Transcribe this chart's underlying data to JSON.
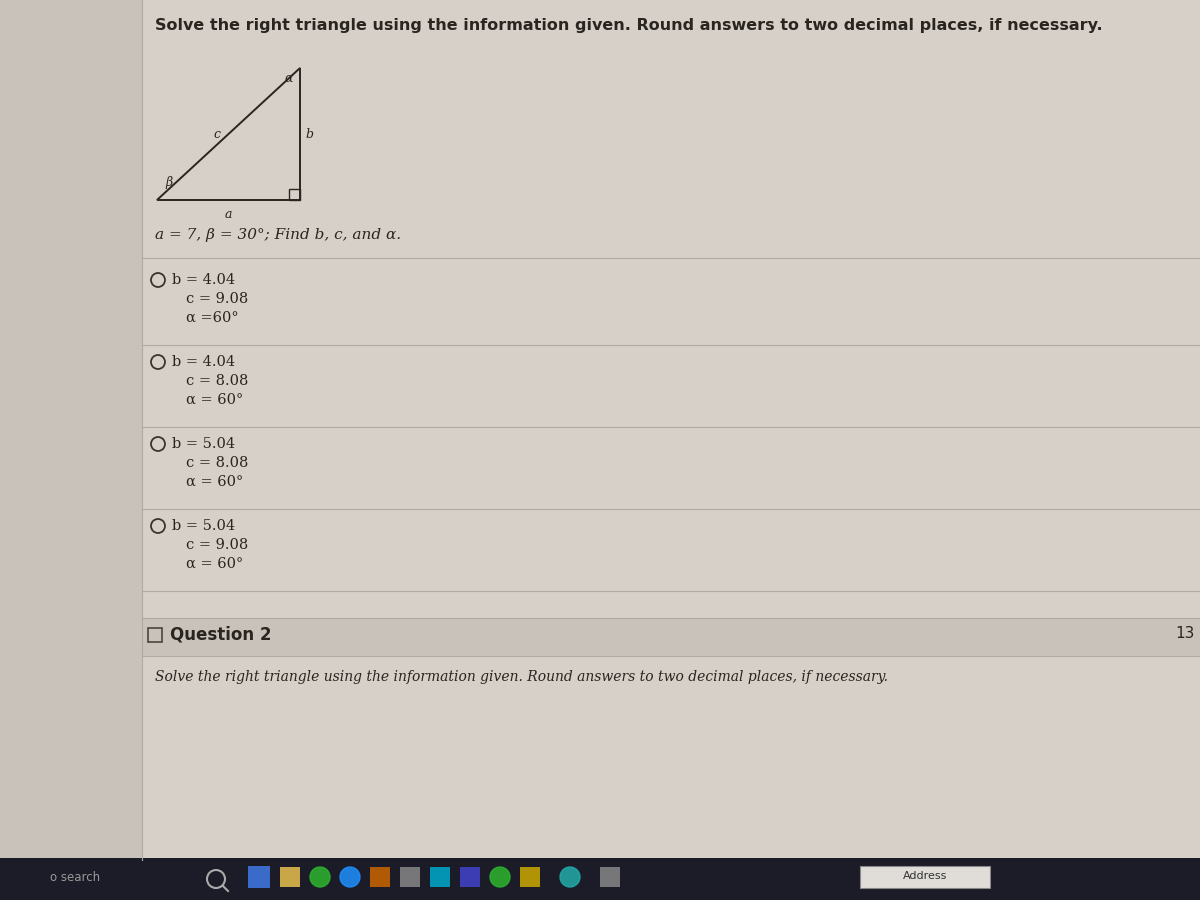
{
  "title": "Solve the right triangle using the information given. Round answers to two decimal places, if necessary.",
  "problem_text": "a = 7, β = 30°; Find b, c, and α.",
  "option_lines": [
    [
      "b = 4.04",
      "c = 9.08",
      "α =60°"
    ],
    [
      "b = 4.04",
      "c = 8.08",
      "α = 60°"
    ],
    [
      "b = 5.04",
      "c = 8.08",
      "α = 60°"
    ],
    [
      "b = 5.04",
      "c = 9.08",
      "α = 60°"
    ]
  ],
  "question2_label": "Question 2",
  "question2_subtext": "Solve the right triangle using the information given. Round answers to two decimal places, if necessary.",
  "bg_color": "#cec8bf",
  "main_panel_color": "#d6d0c8",
  "left_panel_color": "#c8c2ba",
  "separator_color": "#b0aaa2",
  "text_color": "#2a2520",
  "radio_color": "#3a3530",
  "page_number": "13",
  "taskbar_color": "#1c1c28",
  "q2_header_color": "#c8c2ba"
}
